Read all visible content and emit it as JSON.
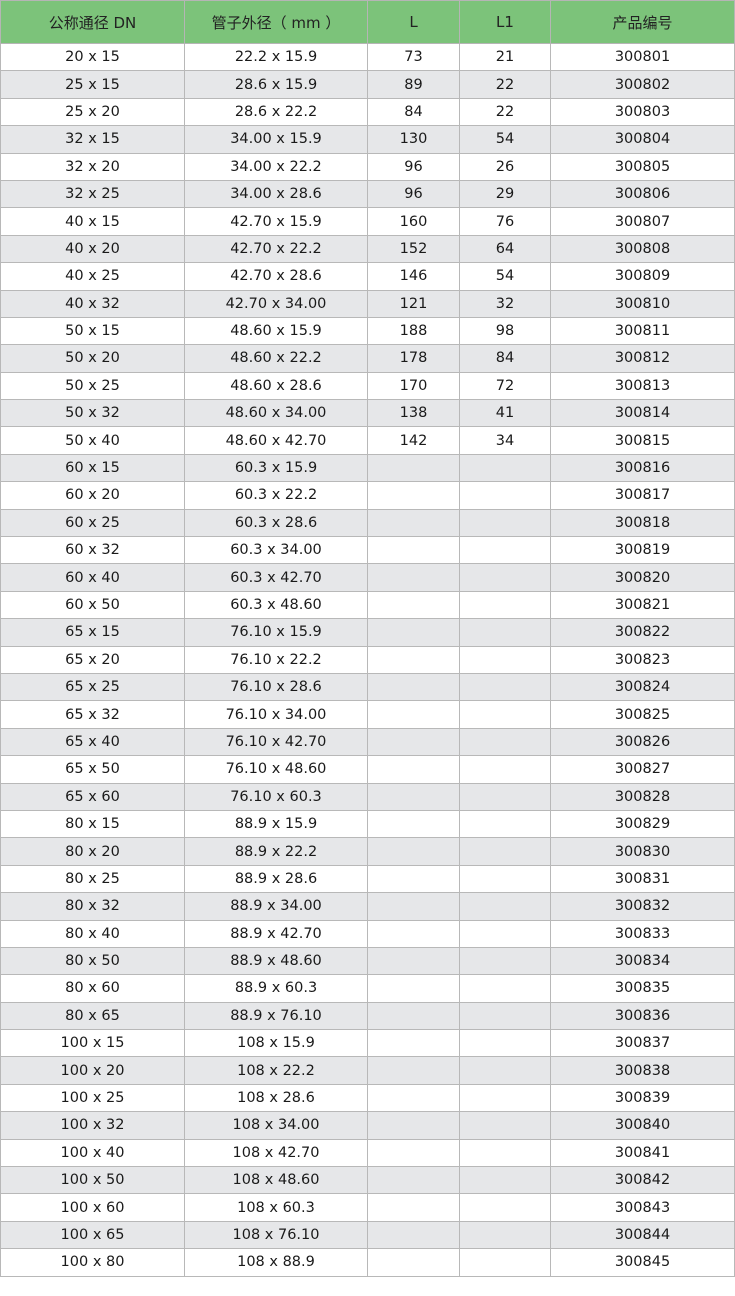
{
  "colors": {
    "header": "#7cc37a",
    "stripe": "#e6e7e9"
  },
  "headers": [
    "公称通径 DN",
    "管子外径（ mm ）",
    "L",
    "L1",
    "产品编号"
  ],
  "rows": [
    [
      "20 x 15",
      "22.2 x 15.9",
      "73",
      "21",
      "300801"
    ],
    [
      "25 x 15",
      "28.6 x 15.9",
      "89",
      "22",
      "300802"
    ],
    [
      "25 x 20",
      "28.6 x 22.2",
      "84",
      "22",
      "300803"
    ],
    [
      "32 x 15",
      "34.00 x 15.9",
      "130",
      "54",
      "300804"
    ],
    [
      "32 x 20",
      "34.00 x 22.2",
      "96",
      "26",
      "300805"
    ],
    [
      "32 x 25",
      "34.00 x 28.6",
      "96",
      "29",
      "300806"
    ],
    [
      "40 x 15",
      "42.70 x 15.9",
      "160",
      "76",
      "300807"
    ],
    [
      "40 x 20",
      "42.70 x 22.2",
      "152",
      "64",
      "300808"
    ],
    [
      "40 x 25",
      "42.70 x 28.6",
      "146",
      "54",
      "300809"
    ],
    [
      "40 x 32",
      "42.70 x 34.00",
      "121",
      "32",
      "300810"
    ],
    [
      "50 x 15",
      "48.60 x 15.9",
      "188",
      "98",
      "300811"
    ],
    [
      "50 x 20",
      "48.60 x 22.2",
      "178",
      "84",
      "300812"
    ],
    [
      "50 x 25",
      "48.60 x 28.6",
      "170",
      "72",
      "300813"
    ],
    [
      "50 x 32",
      "48.60 x 34.00",
      "138",
      "41",
      "300814"
    ],
    [
      "50 x 40",
      "48.60 x 42.70",
      "142",
      "34",
      "300815"
    ],
    [
      "60 x 15",
      "60.3 x 15.9",
      "",
      "",
      "300816"
    ],
    [
      "60 x 20",
      "60.3 x 22.2",
      "",
      "",
      "300817"
    ],
    [
      "60 x 25",
      "60.3 x 28.6",
      "",
      "",
      "300818"
    ],
    [
      "60 x 32",
      "60.3 x 34.00",
      "",
      "",
      "300819"
    ],
    [
      "60 x 40",
      "60.3 x 42.70",
      "",
      "",
      "300820"
    ],
    [
      "60 x 50",
      "60.3 x 48.60",
      "",
      "",
      "300821"
    ],
    [
      "65 x 15",
      "76.10 x 15.9",
      "",
      "",
      "300822"
    ],
    [
      "65 x 20",
      "76.10 x 22.2",
      "",
      "",
      "300823"
    ],
    [
      "65 x 25",
      "76.10 x 28.6",
      "",
      "",
      "300824"
    ],
    [
      "65 x 32",
      "76.10 x 34.00",
      "",
      "",
      "300825"
    ],
    [
      "65 x 40",
      "76.10 x 42.70",
      "",
      "",
      "300826"
    ],
    [
      "65 x 50",
      "76.10 x 48.60",
      "",
      "",
      "300827"
    ],
    [
      "65 x 60",
      "76.10 x 60.3",
      "",
      "",
      "300828"
    ],
    [
      "80 x 15",
      "88.9 x 15.9",
      "",
      "",
      "300829"
    ],
    [
      "80 x 20",
      "88.9 x 22.2",
      "",
      "",
      "300830"
    ],
    [
      "80 x 25",
      "88.9 x 28.6",
      "",
      "",
      "300831"
    ],
    [
      "80 x 32",
      "88.9 x 34.00",
      "",
      "",
      "300832"
    ],
    [
      "80 x 40",
      "88.9 x 42.70",
      "",
      "",
      "300833"
    ],
    [
      "80 x 50",
      "88.9 x 48.60",
      "",
      "",
      "300834"
    ],
    [
      "80 x 60",
      "88.9 x 60.3",
      "",
      "",
      "300835"
    ],
    [
      "80 x 65",
      "88.9 x 76.10",
      "",
      "",
      "300836"
    ],
    [
      "100 x 15",
      "108 x 15.9",
      "",
      "",
      "300837"
    ],
    [
      "100 x 20",
      "108 x 22.2",
      "",
      "",
      "300838"
    ],
    [
      "100 x 25",
      "108 x 28.6",
      "",
      "",
      "300839"
    ],
    [
      "100 x 32",
      "108 x 34.00",
      "",
      "",
      "300840"
    ],
    [
      "100 x 40",
      "108 x 42.70",
      "",
      "",
      "300841"
    ],
    [
      "100 x 50",
      "108 x 48.60",
      "",
      "",
      "300842"
    ],
    [
      "100 x 60",
      "108 x 60.3",
      "",
      "",
      "300843"
    ],
    [
      "100 x 65",
      "108 x 76.10",
      "",
      "",
      "300844"
    ],
    [
      "100 x 80",
      "108 x 88.9",
      "",
      "",
      "300845"
    ]
  ]
}
